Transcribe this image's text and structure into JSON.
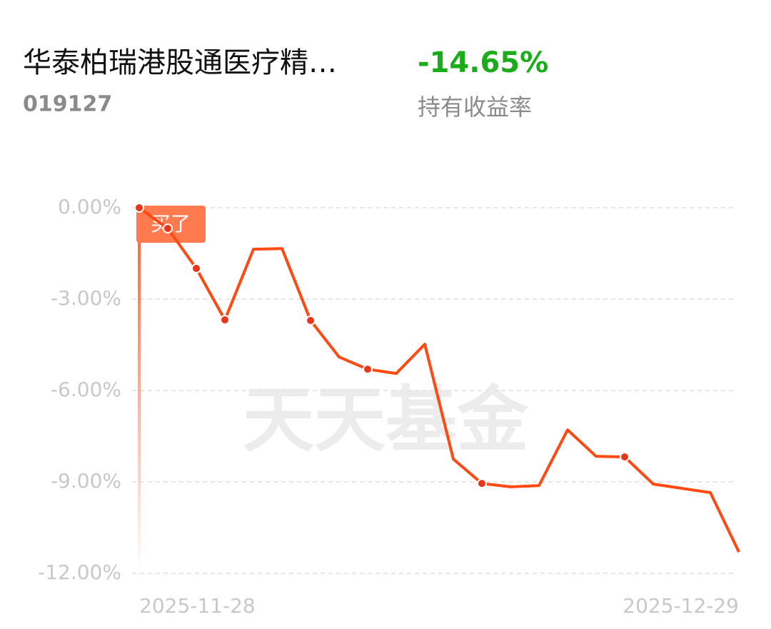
{
  "header": {
    "title": "华泰柏瑞港股通医疗精…",
    "code": "019127",
    "return": "-14.65%",
    "return_label": "持有收益率"
  },
  "chart_data": {
    "type": "line",
    "watermark": "天天基金",
    "annotation": "买了",
    "categories": [
      "2025-11-28",
      null,
      null,
      null,
      null,
      null,
      null,
      null,
      null,
      null,
      null,
      null,
      null,
      null,
      null,
      null,
      null,
      null,
      null,
      null,
      null,
      "2025-12-29"
    ],
    "series": [
      {
        "color": "#ff4a14",
        "values": [
          0.0,
          -0.68,
          -1.99,
          -3.68,
          -1.36,
          -1.34,
          -3.7,
          -4.9,
          -5.3,
          -5.44,
          -4.48,
          -8.25,
          -9.05,
          -9.16,
          -9.12,
          -7.29,
          -8.16,
          -8.18,
          -9.07,
          -9.21,
          -9.35,
          -11.3
        ]
      }
    ],
    "markers": [
      0,
      1,
      2,
      3,
      6,
      8,
      12,
      17
    ],
    "ylim": [
      -12,
      0
    ],
    "yticks": [
      {
        "value": 0,
        "label": "0.00%"
      },
      {
        "value": -3,
        "label": "-3.00%"
      },
      {
        "value": -6,
        "label": "-6.00%"
      },
      {
        "value": -9,
        "label": "-9.00%"
      },
      {
        "value": -12,
        "label": "-12.00%"
      }
    ],
    "grid": true
  }
}
